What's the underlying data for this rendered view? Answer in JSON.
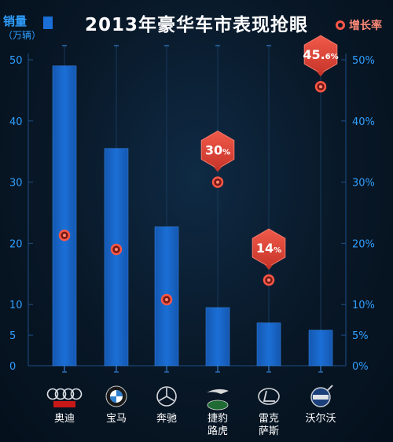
{
  "chart_data": {
    "type": "bar",
    "title": "2013年豪华车市表现抢眼",
    "categories": [
      "奥迪",
      "宝马",
      "奔驰",
      "捷豹路虎",
      "雷克萨斯",
      "沃尔沃"
    ],
    "category_lines": [
      [
        "奥迪"
      ],
      [
        "宝马"
      ],
      [
        "奔驰"
      ],
      [
        "捷豹",
        "路虎"
      ],
      [
        "雷克",
        "萨斯"
      ],
      [
        "沃尔沃"
      ]
    ],
    "brand_logos": [
      "audi-logo",
      "bmw-logo",
      "mercedes-benz-logo",
      "jaguar-land-rover-logo",
      "lexus-logo",
      "volvo-logo"
    ],
    "series": [
      {
        "name": "销量",
        "unit": "万辆",
        "axis": "left",
        "values": [
          49,
          35.5,
          22.7,
          9.5,
          7,
          5.8
        ]
      },
      {
        "name": "增长率",
        "axis": "right",
        "values": [
          21.3,
          19,
          10.8,
          30,
          14,
          45.6
        ]
      }
    ],
    "ylabel": "销量",
    "ylabel_unit": "（万辆）",
    "left_axis_ticks": [
      0,
      5,
      10,
      20,
      30,
      40,
      50
    ],
    "right_axis_ticks": [
      "0%",
      "5%",
      "10%",
      "20%",
      "30%",
      "40%",
      "50%"
    ],
    "ylim": [
      0,
      50
    ],
    "callouts": [
      {
        "category": "捷豹路虎",
        "main": "30",
        "suffix": "%"
      },
      {
        "category": "雷克萨斯",
        "main": "14",
        "suffix": "%"
      },
      {
        "category": "沃尔沃",
        "main": "45.",
        "suffix": "6%"
      }
    ],
    "legend_rate_label": "增长率",
    "grid": false,
    "colors": {
      "bar": "#1b6fd6",
      "bar_edge": "#3a8cf0",
      "rate": "#ff5747",
      "axis_text": "#2f9fff",
      "callout": "#e8483a"
    }
  }
}
